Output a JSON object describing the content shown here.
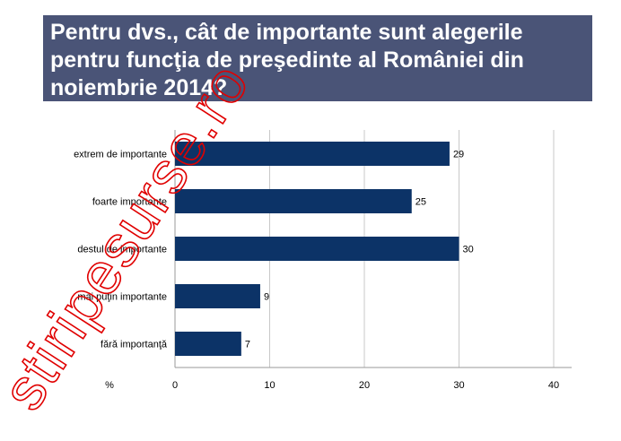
{
  "title": "Pentru dvs., cât de importante sunt alegerile pentru funcţia de preşedinte al României din noiembrie 2014?",
  "watermark": "stiripesurse.ro",
  "colors": {
    "bar": "#0c3367",
    "title_bg": "#4a5477",
    "grid": "#c8c8c8",
    "watermark": "#e00000"
  },
  "chart_data": {
    "type": "bar",
    "orientation": "horizontal",
    "categories": [
      "extrem de importante",
      "foarte importante",
      "destul de importante",
      "mai puţin importante",
      "fără importanţă"
    ],
    "values": [
      29,
      25,
      30,
      9,
      7
    ],
    "data_labels": [
      "29",
      "25",
      "30",
      "9",
      "7"
    ],
    "xlabel": "%",
    "xlim": [
      0,
      40
    ],
    "xticks": [
      "0",
      "10",
      "20",
      "30",
      "40"
    ],
    "grid": true,
    "legend": "none"
  }
}
